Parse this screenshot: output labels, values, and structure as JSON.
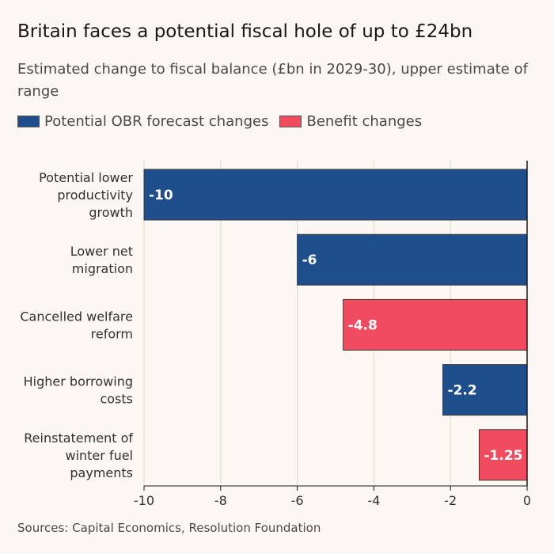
{
  "title": "Britain faces a potential fiscal hole of up to £24bn",
  "subtitle": "Estimated change to fiscal balance (£bn in 2029-30), upper estimate of range",
  "source": "Sources: Capital Economics, Resolution Foundation",
  "legend": [
    {
      "name": "Potential OBR forecast changes",
      "color": "#1f4e8c"
    },
    {
      "name": "Benefit changes",
      "color": "#f04b5e"
    }
  ],
  "chart_data": {
    "type": "bar",
    "orientation": "horizontal",
    "categories": [
      [
        "Potential lower",
        "productivity",
        "growth"
      ],
      [
        "Lower net",
        "migration"
      ],
      [
        "Cancelled welfare",
        "reform"
      ],
      [
        "Higher borrowing",
        "costs"
      ],
      [
        "Reinstatement of",
        "winter fuel",
        "payments"
      ]
    ],
    "values": [
      -10,
      -6,
      -4.8,
      -2.2,
      -1.25
    ],
    "value_labels": [
      "-10",
      "-6",
      "-4.8",
      "-2.2",
      "-1.25"
    ],
    "series_of_bar": [
      0,
      0,
      1,
      0,
      1
    ],
    "xlim": [
      -10,
      0
    ],
    "xticks": [
      -10,
      -8,
      -6,
      -4,
      -2,
      0
    ],
    "xtick_labels": [
      "-10",
      "-8",
      "-6",
      "-4",
      "-2",
      "0"
    ],
    "grid": true,
    "legend_position": "top-left"
  }
}
